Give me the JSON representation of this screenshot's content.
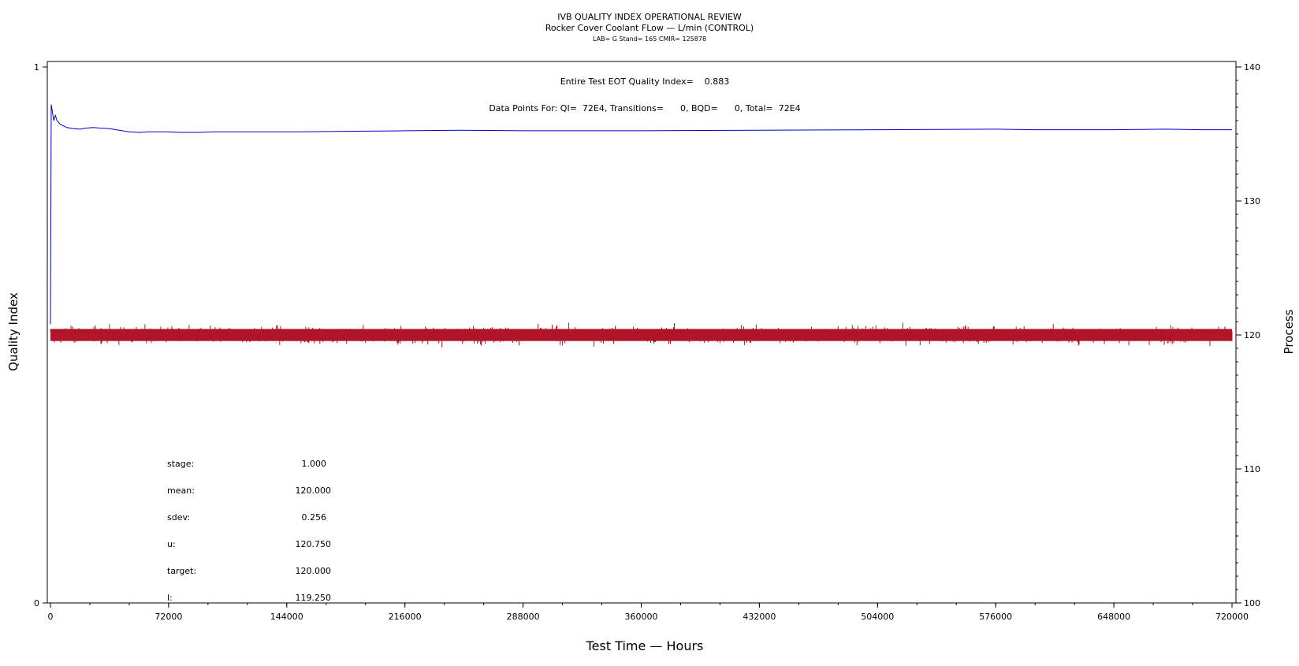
{
  "titles": {
    "line1": "IVB QUALITY INDEX OPERATIONAL REVIEW",
    "line2": "Rocker Cover Coolant FLow — L/min (CONTROL)",
    "line3": "LAB= G Stand= 165 CMIR= 125878"
  },
  "annotations": {
    "qi": "Entire Test EOT Quality Index=    0.883",
    "points": "Data Points For: QI=  72E4, Transitions=      0, BQD=      0, Total=  72E4"
  },
  "stats": [
    {
      "label": "stage:",
      "value": "1.000"
    },
    {
      "label": "mean:",
      "value": "120.000"
    },
    {
      "label": "sdev:",
      "value": "0.256"
    },
    {
      "label": "u:",
      "value": "120.750"
    },
    {
      "label": "target:",
      "value": "120.000"
    },
    {
      "label": "l:",
      "value": "119.250"
    }
  ],
  "chart_data": {
    "type": "line",
    "title": "IVB QUALITY INDEX OPERATIONAL REVIEW",
    "xlabel": "Test Time — Hours",
    "ylabel_left": "Quality Index",
    "ylabel_right": "Process",
    "xlim": [
      0,
      720000
    ],
    "ylim_left": [
      0,
      1
    ],
    "ylim_right": [
      100,
      140
    ],
    "x_ticks": [
      "0",
      "72000",
      "144000",
      "216000",
      "288000",
      "360000",
      "432000",
      "504000",
      "576000",
      "648000",
      "720000"
    ],
    "y_left_ticks": [
      "0",
      "1"
    ],
    "y_right_ticks": [
      "100",
      "110",
      "120",
      "130",
      "140"
    ],
    "grid": false,
    "series": [
      {
        "axis": "left",
        "color": "#0000cc",
        "x": [
          0,
          500,
          1000,
          1500,
          2000,
          3000,
          4000,
          6000,
          8000,
          10000,
          14000,
          18000,
          22000,
          26000,
          30000,
          36000,
          42000,
          48000,
          54000,
          60000,
          70000,
          80000,
          90000,
          100000,
          120000,
          150000,
          180000,
          216000,
          250000,
          288000,
          300000,
          360000,
          432000,
          504000,
          576000,
          600000,
          648000,
          680000,
          700000,
          720000
        ],
        "y": [
          0.52,
          0.93,
          0.92,
          0.91,
          0.9,
          0.91,
          0.9,
          0.893,
          0.89,
          0.887,
          0.885,
          0.884,
          0.886,
          0.887,
          0.886,
          0.885,
          0.882,
          0.879,
          0.878,
          0.879,
          0.879,
          0.878,
          0.878,
          0.879,
          0.879,
          0.879,
          0.88,
          0.881,
          0.882,
          0.881,
          0.881,
          0.881,
          0.882,
          0.883,
          0.884,
          0.883,
          0.883,
          0.884,
          0.883,
          0.883
        ]
      },
      {
        "axis": "right",
        "color": "#b0152a",
        "description": "",
        "x_range": [
          0,
          720000
        ],
        "mean": 120.0,
        "sdev": 0.256,
        "min": 118.8,
        "max": 121.3
      }
    ]
  }
}
